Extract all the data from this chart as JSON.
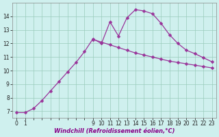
{
  "xlabel": "Windchill (Refroidissement éolien,°C)",
  "ylabel": "",
  "bg_color": "#cff0ee",
  "line_color": "#993399",
  "grid_color": "#99ccbb",
  "x_upper": [
    0,
    1,
    2,
    3,
    4,
    5,
    6,
    7,
    8,
    9,
    10,
    11,
    12,
    13,
    14,
    15,
    16,
    17,
    18,
    19,
    20,
    21,
    22,
    23
  ],
  "y_upper": [
    6.9,
    6.9,
    7.2,
    7.8,
    8.5,
    9.2,
    9.9,
    10.6,
    11.4,
    12.35,
    12.0,
    13.6,
    12.55,
    13.9,
    14.5,
    14.4,
    14.2,
    13.5,
    12.65,
    12.0,
    11.5,
    11.25,
    10.95,
    10.65
  ],
  "x_lower": [
    9,
    10,
    11,
    12,
    13,
    14,
    15,
    16,
    17,
    18,
    19,
    20,
    21,
    22,
    23
  ],
  "y_lower": [
    12.3,
    12.1,
    11.9,
    11.7,
    11.5,
    11.3,
    11.15,
    11.0,
    10.85,
    10.7,
    10.6,
    10.5,
    10.4,
    10.3,
    10.2
  ],
  "ylim": [
    6.5,
    15.0
  ],
  "xlim": [
    -0.5,
    23.5
  ],
  "yticks": [
    7,
    8,
    9,
    10,
    11,
    12,
    13,
    14
  ],
  "xtick_positions": [
    0,
    1,
    2,
    3,
    4,
    5,
    6,
    7,
    8,
    9,
    10,
    11,
    12,
    13,
    14,
    15,
    16,
    17,
    18,
    19,
    20,
    21,
    22,
    23
  ],
  "xtick_labels": [
    "0",
    "1",
    "",
    "",
    "",
    "",
    "",
    "",
    "",
    "9",
    "10",
    "11",
    "12",
    "13",
    "14",
    "15",
    "16",
    "17",
    "18",
    "19",
    "20",
    "21",
    "22",
    "23"
  ],
  "tick_fontsize": 5.5,
  "xlabel_fontsize": 6.0,
  "marker_size": 2.5,
  "linewidth": 0.9
}
